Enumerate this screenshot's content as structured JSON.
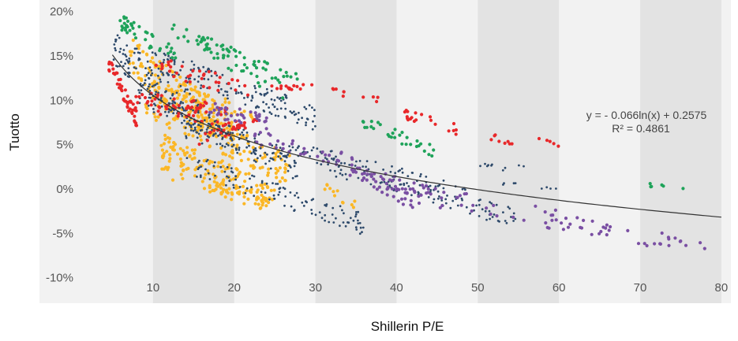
{
  "chart_data": {
    "type": "scatter",
    "title": "",
    "xlabel": "Shillerin P/E",
    "ylabel": "Tuotto",
    "xlim": [
      0,
      80
    ],
    "ylim": [
      -0.1,
      0.2
    ],
    "x_ticks": [
      10,
      20,
      30,
      40,
      50,
      60,
      70,
      80
    ],
    "x_tick_labels": [
      "10",
      "20",
      "30",
      "40",
      "50",
      "60",
      "70",
      "80"
    ],
    "y_ticks": [
      -0.1,
      -0.05,
      0.0,
      0.05,
      0.1,
      0.15,
      0.2
    ],
    "y_tick_labels": [
      "-10%",
      "-5%",
      "0%",
      "5%",
      "10%",
      "15%",
      "20%"
    ],
    "background_bands": "alternating light and darker grey vertical bands every 10 units",
    "legend": "none",
    "trendline": {
      "type": "logarithmic",
      "a": -0.066,
      "b": 0.2575,
      "x_range": [
        5,
        80
      ],
      "equation": "y = - 0.066ln(x) + 0.2575",
      "r2": "R² = 0.4861"
    },
    "series": [
      {
        "color": "#2e4a6b",
        "marker": "small",
        "bands": [
          {
            "x0": 5,
            "x1": 16,
            "y_at_x0": 0.16,
            "y_at_x1": 0.08,
            "spread": 0.02,
            "n": 130
          },
          {
            "x0": 9,
            "x1": 30,
            "y_at_x0": 0.15,
            "y_at_x1": 0.08,
            "spread": 0.014,
            "n": 150
          },
          {
            "x0": 8,
            "x1": 28,
            "y_at_x0": 0.11,
            "y_at_x1": 0.02,
            "spread": 0.014,
            "n": 140
          },
          {
            "x0": 14,
            "x1": 49,
            "y_at_x0": 0.07,
            "y_at_x1": -0.01,
            "spread": 0.014,
            "n": 150
          },
          {
            "x0": 14,
            "x1": 36,
            "y_at_x0": 0.03,
            "y_at_x1": -0.04,
            "spread": 0.012,
            "n": 110
          },
          {
            "x0": 30,
            "x1": 55,
            "y_at_x0": 0.035,
            "y_at_x1": -0.035,
            "spread": 0.012,
            "n": 80
          },
          {
            "x0": 48,
            "x1": 56,
            "y_at_x0": 0.03,
            "y_at_x1": 0.022,
            "spread": 0.004,
            "n": 10
          },
          {
            "x0": 53,
            "x1": 60,
            "y_at_x0": 0.005,
            "y_at_x1": -0.001,
            "spread": 0.004,
            "n": 8
          }
        ]
      },
      {
        "color": "#fbb726",
        "marker": "medium",
        "bands": [
          {
            "x0": 7,
            "x1": 20,
            "y_at_x0": 0.15,
            "y_at_x1": 0.06,
            "spread": 0.022,
            "n": 170
          },
          {
            "x0": 9,
            "x1": 27,
            "y_at_x0": 0.1,
            "y_at_x1": 0.02,
            "spread": 0.018,
            "n": 150
          },
          {
            "x0": 11,
            "x1": 25,
            "y_at_x0": 0.05,
            "y_at_x1": -0.01,
            "spread": 0.015,
            "n": 130
          },
          {
            "x0": 11,
            "x1": 24,
            "y_at_x0": 0.022,
            "y_at_x1": -0.018,
            "spread": 0.008,
            "n": 50
          },
          {
            "x0": 13,
            "x1": 23,
            "y_at_x0": 0.11,
            "y_at_x1": 0.08,
            "spread": 0.01,
            "n": 30
          },
          {
            "x0": 30,
            "x1": 35,
            "y_at_x0": 0.01,
            "y_at_x1": -0.02,
            "spread": 0.006,
            "n": 12
          }
        ]
      },
      {
        "color": "#e8282a",
        "marker": "medium",
        "bands": [
          {
            "x0": 4.5,
            "x1": 8,
            "y_at_x0": 0.14,
            "y_at_x1": 0.08,
            "spread": 0.01,
            "n": 45
          },
          {
            "x0": 7,
            "x1": 21,
            "y_at_x0": 0.1,
            "y_at_x1": 0.08,
            "spread": 0.012,
            "n": 70
          },
          {
            "x0": 10,
            "x1": 22,
            "y_at_x0": 0.14,
            "y_at_x1": 0.11,
            "spread": 0.01,
            "n": 35
          },
          {
            "x0": 14,
            "x1": 23,
            "y_at_x0": 0.05,
            "y_at_x1": 0.08,
            "spread": 0.007,
            "n": 25
          },
          {
            "x0": 24,
            "x1": 30,
            "y_at_x0": 0.115,
            "y_at_x1": 0.115,
            "spread": 0.003,
            "n": 14
          },
          {
            "x0": 32,
            "x1": 38,
            "y_at_x0": 0.11,
            "y_at_x1": 0.1,
            "spread": 0.004,
            "n": 10
          },
          {
            "x0": 41,
            "x1": 48,
            "y_at_x0": 0.085,
            "y_at_x1": 0.065,
            "spread": 0.006,
            "n": 20
          },
          {
            "x0": 51,
            "x1": 55,
            "y_at_x0": 0.06,
            "y_at_x1": 0.05,
            "spread": 0.004,
            "n": 8
          },
          {
            "x0": 57,
            "x1": 60,
            "y_at_x0": 0.055,
            "y_at_x1": 0.05,
            "spread": 0.003,
            "n": 5
          }
        ]
      },
      {
        "color": "#1fa35a",
        "marker": "medium",
        "bands": [
          {
            "x0": 5.5,
            "x1": 13,
            "y_at_x0": 0.19,
            "y_at_x1": 0.15,
            "spread": 0.01,
            "n": 40
          },
          {
            "x0": 12,
            "x1": 23,
            "y_at_x0": 0.18,
            "y_at_x1": 0.14,
            "spread": 0.008,
            "n": 30
          },
          {
            "x0": 16,
            "x1": 26,
            "y_at_x0": 0.165,
            "y_at_x1": 0.11,
            "spread": 0.012,
            "n": 35
          },
          {
            "x0": 22,
            "x1": 28,
            "y_at_x0": 0.145,
            "y_at_x1": 0.125,
            "spread": 0.005,
            "n": 14
          },
          {
            "x0": 35,
            "x1": 45,
            "y_at_x0": 0.08,
            "y_at_x1": 0.04,
            "spread": 0.007,
            "n": 30
          },
          {
            "x0": 65,
            "x1": 76,
            "y_at_x0": 0.011,
            "y_at_x1": -0.001,
            "spread": 0.002,
            "n": 6
          }
        ]
      },
      {
        "color": "#7a4fa3",
        "marker": "medium",
        "bands": [
          {
            "x0": 17,
            "x1": 24,
            "y_at_x0": 0.09,
            "y_at_x1": 0.075,
            "spread": 0.008,
            "n": 35
          },
          {
            "x0": 22,
            "x1": 32,
            "y_at_x0": 0.06,
            "y_at_x1": 0.035,
            "spread": 0.008,
            "n": 25
          },
          {
            "x0": 32,
            "x1": 42,
            "y_at_x0": 0.04,
            "y_at_x1": -0.015,
            "spread": 0.01,
            "n": 40
          },
          {
            "x0": 34,
            "x1": 45,
            "y_at_x0": 0.02,
            "y_at_x1": -0.01,
            "spread": 0.01,
            "n": 35
          },
          {
            "x0": 42,
            "x1": 60,
            "y_at_x0": -0.005,
            "y_at_x1": -0.035,
            "spread": 0.012,
            "n": 30
          },
          {
            "x0": 58,
            "x1": 79,
            "y_at_x0": -0.035,
            "y_at_x1": -0.066,
            "spread": 0.01,
            "n": 40
          }
        ]
      }
    ]
  }
}
